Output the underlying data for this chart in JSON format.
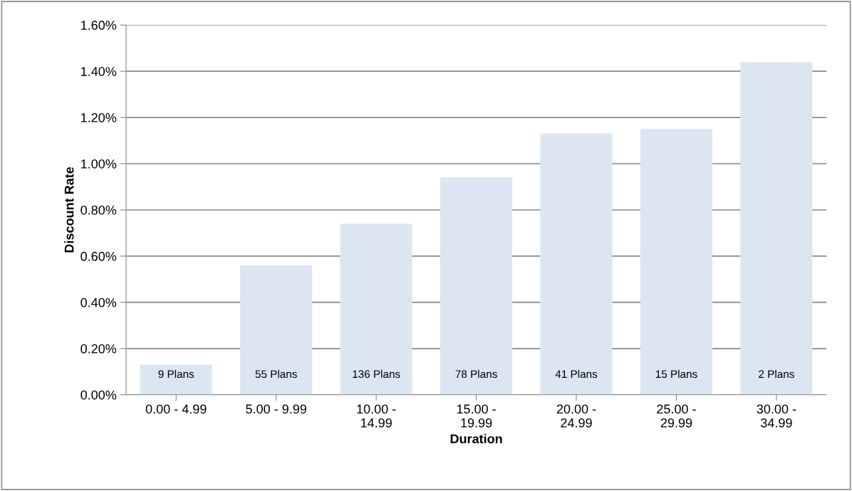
{
  "chart_data": {
    "type": "bar",
    "xlabel": "Duration",
    "ylabel": "Discount Rate",
    "categories": [
      "0.00 - 4.99",
      "5.00 - 9.99",
      "10.00 -\n14.99",
      "15.00 -\n19.99",
      "20.00 -\n24.99",
      "25.00 -\n29.99",
      "30.00 -\n34.99"
    ],
    "values": [
      0.13,
      0.56,
      0.74,
      0.94,
      1.13,
      1.15,
      1.44
    ],
    "color": "#dce6f2",
    "ylim": [
      0,
      1.6
    ],
    "yticks": [
      {
        "value": 0,
        "label": "0.00%"
      },
      {
        "value": 0.2,
        "label": "0.20%"
      },
      {
        "value": 0.4,
        "label": "0.40%"
      },
      {
        "value": 0.6,
        "label": "0.60%"
      },
      {
        "value": 0.8,
        "label": "0.80%"
      },
      {
        "value": 1.0,
        "label": "1.00%"
      },
      {
        "value": 1.2,
        "label": "1.20%"
      },
      {
        "value": 1.4,
        "label": "1.40%"
      },
      {
        "value": 1.6,
        "label": "1.60%"
      }
    ],
    "grid": "y",
    "annotations": [
      "9 Plans",
      "55 Plans",
      "136 Plans",
      "78 Plans",
      "41 Plans",
      "15 Plans",
      "2 Plans"
    ]
  }
}
